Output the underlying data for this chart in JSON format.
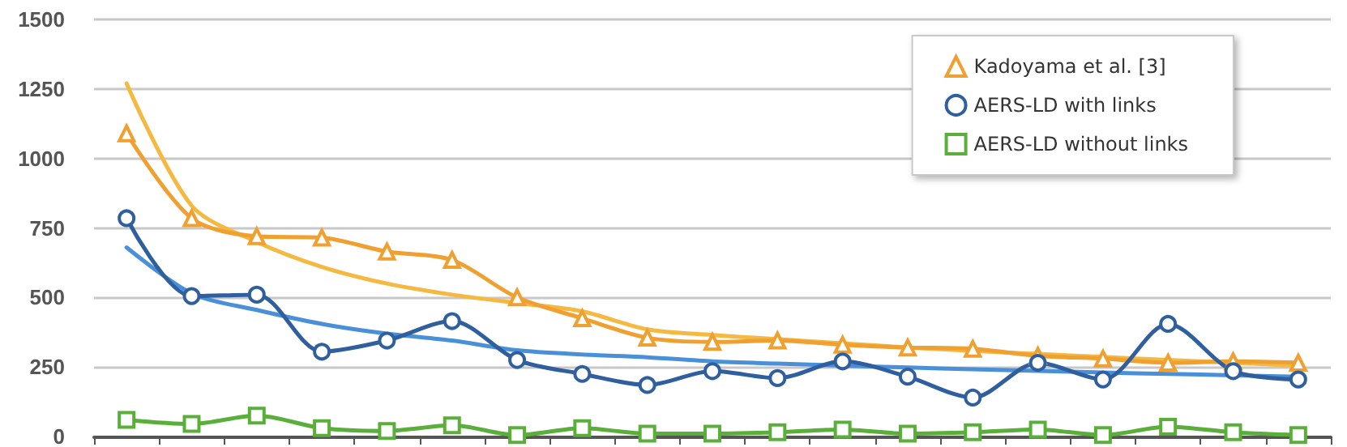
{
  "chart_data": {
    "type": "line",
    "categories": [
      null,
      null,
      null,
      null,
      null,
      null,
      null,
      null,
      null,
      null,
      null,
      null,
      null,
      null,
      null,
      null,
      null,
      null,
      null
    ],
    "series": [
      {
        "name": "Kadoyama et al. [3]",
        "color": "#f0a030",
        "marker": "triangle",
        "values": [
          1090,
          785,
          720,
          715,
          665,
          635,
          500,
          425,
          355,
          340,
          345,
          330,
          320,
          315,
          290,
          280,
          265,
          270,
          265
        ]
      },
      {
        "name": "AERS-LD with links",
        "color": "#2f5f9e",
        "marker": "circle",
        "values": [
          785,
          505,
          510,
          305,
          345,
          415,
          275,
          225,
          185,
          235,
          210,
          270,
          215,
          140,
          265,
          205,
          405,
          235,
          205
        ]
      },
      {
        "name": "AERS-LD without links",
        "color": "#5aae3a",
        "marker": "square",
        "values": [
          60,
          45,
          75,
          30,
          20,
          40,
          5,
          30,
          10,
          10,
          15,
          25,
          10,
          15,
          25,
          5,
          35,
          15,
          5
        ]
      },
      {
        "color": "#f5b942",
        "marker": "none",
        "values": [
          1270,
          830,
          700,
          610,
          550,
          510,
          480,
          450,
          385,
          365,
          350,
          335,
          320,
          308,
          297,
          286,
          275,
          265,
          255
        ]
      },
      {
        "color": "#4a90d9",
        "marker": "none",
        "values": [
          680,
          515,
          455,
          405,
          370,
          345,
          310,
          295,
          285,
          270,
          262,
          255,
          248,
          242,
          236,
          230,
          225,
          220,
          215
        ]
      }
    ],
    "ylim": [
      0,
      1500
    ],
    "yticks": [
      0,
      250,
      500,
      750,
      1000,
      1250,
      1500
    ],
    "grid": "y",
    "legend": "top right",
    "tick_labels": "y"
  }
}
